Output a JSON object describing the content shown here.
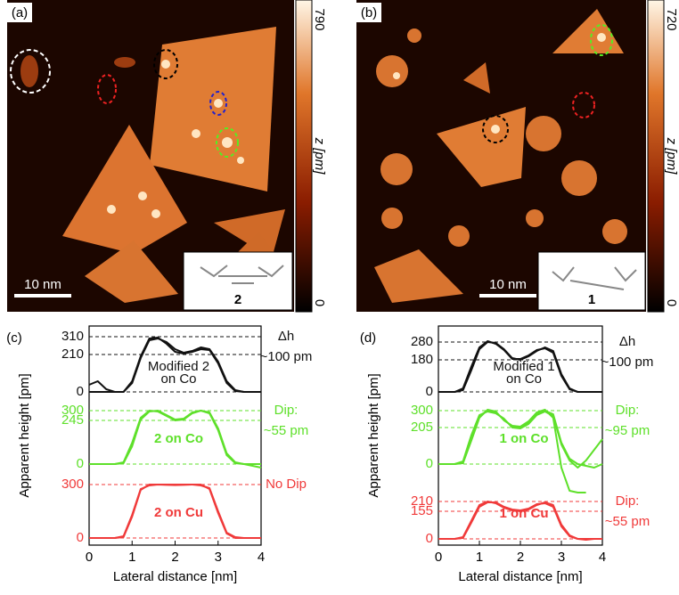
{
  "images": [
    {
      "label": "(a)",
      "colorbar_max": 790,
      "colorbar_min": 0,
      "colorbar_label": "z [pm]",
      "scale_bar": "10 nm",
      "inset_label": "2"
    },
    {
      "label": "(b)",
      "colorbar_max": 720,
      "colorbar_min": 0,
      "colorbar_label": "z [pm]",
      "scale_bar": "10 nm",
      "inset_label": "1"
    }
  ],
  "chart_data": [
    {
      "type": "line",
      "label": "(c)",
      "xlabel": "Lateral distance [nm]",
      "ylabel": "Apparent height [pm]",
      "xlim": [
        0,
        4
      ],
      "xticks": [
        0,
        1,
        2,
        3,
        4
      ],
      "x": [
        0,
        0.2,
        0.4,
        0.6,
        0.8,
        1.0,
        1.2,
        1.4,
        1.6,
        1.8,
        2.0,
        2.2,
        2.4,
        2.6,
        2.8,
        3.0,
        3.2,
        3.4,
        3.6,
        3.8,
        4.0
      ],
      "tracks": [
        {
          "color": "#111111",
          "ylim": [
            -30,
            370
          ],
          "yticks": [
            0,
            210,
            310
          ],
          "label": [
            "Modified 2",
            "on Co"
          ],
          "annotation": [
            "Δh",
            "~100 pm"
          ],
          "series": [
            {
              "values": [
                40,
                60,
                15,
                0,
                0,
                60,
                200,
                300,
                305,
                270,
                225,
                215,
                225,
                240,
                235,
                160,
                50,
                5,
                0,
                0,
                0
              ]
            },
            {
              "values": [
                0,
                0,
                0,
                0,
                0,
                50,
                190,
                290,
                300,
                280,
                240,
                220,
                230,
                250,
                240,
                170,
                60,
                10,
                0,
                0,
                0
              ]
            }
          ]
        },
        {
          "color": "#5ee02a",
          "ylim": [
            -30,
            370
          ],
          "yticks": [
            0,
            245,
            300
          ],
          "label": [
            "2 on Co"
          ],
          "annotation": [
            "Dip:",
            "~55 pm"
          ],
          "series": [
            {
              "values": [
                0,
                0,
                0,
                0,
                10,
                120,
                260,
                300,
                295,
                270,
                245,
                250,
                285,
                300,
                290,
                200,
                60,
                10,
                0,
                0,
                0
              ]
            },
            {
              "values": [
                0,
                0,
                0,
                0,
                5,
                100,
                250,
                295,
                300,
                275,
                250,
                255,
                290,
                300,
                285,
                190,
                50,
                5,
                0,
                -10,
                -20
              ]
            }
          ]
        },
        {
          "color": "#f03a3a",
          "ylim": [
            -30,
            370
          ],
          "yticks": [
            0,
            300
          ],
          "label": [
            "2 on Cu"
          ],
          "annotation": [
            "No Dip"
          ],
          "series": [
            {
              "values": [
                0,
                0,
                0,
                0,
                5,
                120,
                270,
                300,
                300,
                300,
                300,
                300,
                300,
                295,
                280,
                150,
                30,
                5,
                0,
                0,
                0
              ]
            },
            {
              "values": [
                0,
                0,
                0,
                0,
                10,
                130,
                275,
                295,
                300,
                298,
                297,
                298,
                300,
                300,
                275,
                140,
                25,
                0,
                0,
                0,
                0
              ]
            }
          ]
        }
      ]
    },
    {
      "type": "line",
      "label": "(d)",
      "xlabel": "Lateral distance [nm]",
      "ylabel": "Apparent height [pm]",
      "xlim": [
        0,
        4
      ],
      "xticks": [
        0,
        1,
        2,
        3,
        4
      ],
      "x": [
        0,
        0.2,
        0.4,
        0.6,
        0.8,
        1.0,
        1.2,
        1.4,
        1.6,
        1.8,
        2.0,
        2.2,
        2.4,
        2.6,
        2.8,
        3.0,
        3.2,
        3.4,
        3.6,
        3.8,
        4.0
      ],
      "tracks": [
        {
          "color": "#111111",
          "ylim": [
            -30,
            370
          ],
          "yticks": [
            0,
            180,
            280
          ],
          "label": [
            "Modified 1",
            "on Co"
          ],
          "annotation": [
            "Δh",
            "~100 pm"
          ],
          "series": [
            {
              "values": [
                0,
                0,
                0,
                10,
                120,
                240,
                280,
                275,
                240,
                190,
                180,
                200,
                230,
                250,
                230,
                100,
                20,
                0,
                0,
                0,
                0
              ]
            },
            {
              "values": [
                0,
                0,
                0,
                20,
                140,
                250,
                285,
                270,
                235,
                185,
                185,
                205,
                235,
                245,
                220,
                90,
                15,
                0,
                0,
                0,
                0
              ]
            }
          ]
        },
        {
          "color": "#5ee02a",
          "ylim": [
            -190,
            370
          ],
          "yticks": [
            0,
            205,
            300
          ],
          "label": [
            "1 on Co"
          ],
          "annotation": [
            "Dip:",
            "~95 pm"
          ],
          "series": [
            {
              "values": [
                0,
                0,
                0,
                10,
                150,
                270,
                300,
                290,
                250,
                210,
                205,
                230,
                280,
                300,
                280,
                120,
                30,
                0,
                -10,
                -20,
                0
              ]
            },
            {
              "values": [
                0,
                0,
                0,
                5,
                130,
                260,
                305,
                295,
                245,
                215,
                210,
                240,
                290,
                305,
                260,
                -20,
                -150,
                -160,
                -160,
                null,
                null
              ]
            },
            {
              "values": [
                0,
                0,
                0,
                15,
                160,
                275,
                295,
                285,
                255,
                205,
                200,
                225,
                275,
                295,
                270,
                110,
                20,
                -20,
                20,
                80,
                140
              ]
            }
          ]
        },
        {
          "color": "#f03a3a",
          "ylim": [
            -30,
            370
          ],
          "yticks": [
            0,
            155,
            210
          ],
          "label": [
            "1 on Cu"
          ],
          "annotation": [
            "Dip:",
            "~55 pm"
          ],
          "series": [
            {
              "values": [
                0,
                0,
                0,
                10,
                100,
                190,
                210,
                200,
                175,
                160,
                155,
                165,
                190,
                205,
                190,
                80,
                20,
                0,
                0,
                0,
                0
              ]
            },
            {
              "values": [
                0,
                0,
                0,
                5,
                90,
                180,
                205,
                205,
                180,
                165,
                160,
                170,
                195,
                200,
                180,
                70,
                15,
                0,
                -5,
                0,
                0
              ]
            }
          ]
        }
      ]
    }
  ]
}
